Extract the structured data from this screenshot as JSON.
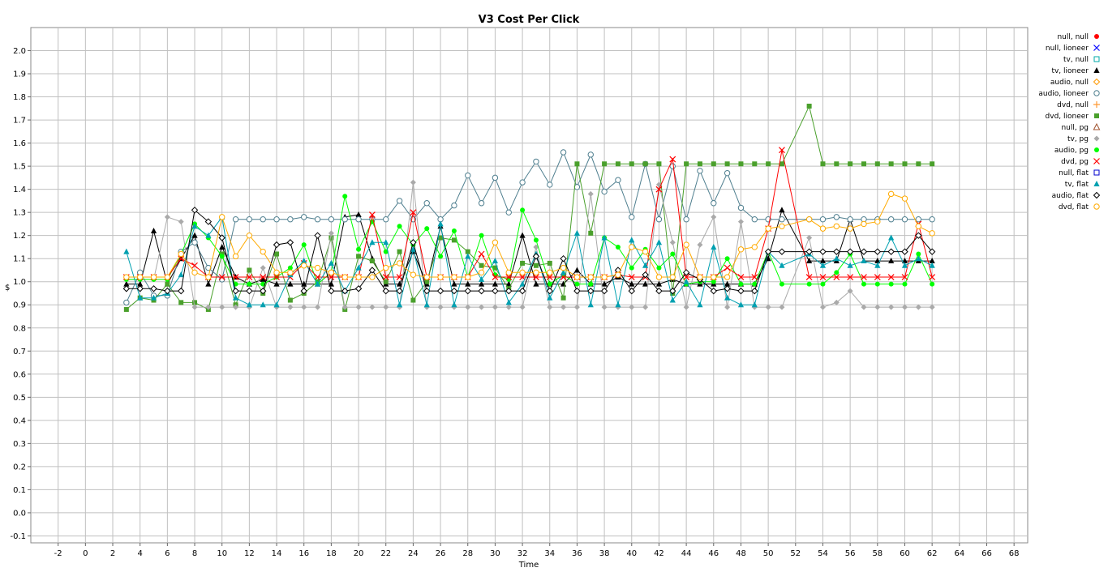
{
  "chart_data": {
    "type": "line",
    "title": "V3 Cost Per Click",
    "xlabel": "Time",
    "ylabel": "$",
    "xlim": [
      -4,
      69
    ],
    "ylim": [
      -0.13,
      2.1
    ],
    "xticks": [
      -2,
      0,
      2,
      4,
      6,
      8,
      10,
      12,
      14,
      16,
      18,
      20,
      22,
      24,
      26,
      28,
      30,
      32,
      34,
      36,
      38,
      40,
      42,
      44,
      46,
      48,
      50,
      52,
      54,
      56,
      58,
      60,
      62,
      64,
      66,
      68
    ],
    "yticks": [
      -0.1,
      0.0,
      0.1,
      0.2,
      0.3,
      0.4,
      0.5,
      0.6,
      0.7,
      0.8,
      0.9,
      1.0,
      1.1,
      1.2,
      1.3,
      1.4,
      1.5,
      1.6,
      1.7,
      1.8,
      1.9,
      2.0
    ],
    "ytick_labels": [
      "-0.1",
      "0.0",
      "0.1",
      "0.2",
      "0.3",
      "0.4",
      "0.5",
      "0.6",
      "0.7",
      "0.8",
      "0.9",
      "1.0",
      "1.1",
      "1.2",
      "1.3",
      "1.4",
      "1.5",
      "1.6",
      "1.7",
      "1.8",
      "1.9",
      "2.0"
    ],
    "grid": true,
    "legend_position": "right",
    "series": [
      {
        "name": "null, null",
        "color": "#ff0000",
        "marker": "circle-filled",
        "x": [],
        "y": []
      },
      {
        "name": "null, lioneer",
        "color": "#0000ff",
        "marker": "x",
        "x": [],
        "y": []
      },
      {
        "name": "tv, null",
        "color": "#00aaaa",
        "marker": "square-open",
        "x": [],
        "y": []
      },
      {
        "name": "tv, lioneer",
        "color": "#000000",
        "marker": "triangle-filled",
        "x": [
          3,
          4,
          5,
          6,
          7,
          8,
          9,
          10,
          11,
          12,
          13,
          14,
          15,
          16,
          17,
          18,
          19,
          20,
          21,
          22,
          23,
          24,
          25,
          26,
          27,
          28,
          29,
          30,
          31,
          32,
          33,
          34,
          35,
          36,
          37,
          38,
          39,
          40,
          41,
          42,
          43,
          44,
          45,
          46,
          47,
          48,
          49,
          50,
          51,
          53,
          54,
          55,
          56,
          57,
          58,
          59,
          60,
          61,
          62
        ],
        "y": [
          0.99,
          0.99,
          1.22,
          0.99,
          1.1,
          1.2,
          0.99,
          1.15,
          1.02,
          0.99,
          1.01,
          0.99,
          0.99,
          0.99,
          0.99,
          0.99,
          1.28,
          1.29,
          1.1,
          0.99,
          0.99,
          1.13,
          0.99,
          1.24,
          0.99,
          0.99,
          0.99,
          0.99,
          0.99,
          1.2,
          0.99,
          0.99,
          0.99,
          1.05,
          0.99,
          0.99,
          1.02,
          0.99,
          0.99,
          0.99,
          1.01,
          0.99,
          0.99,
          0.99,
          0.99,
          0.99,
          0.99,
          1.1,
          1.31,
          1.09,
          1.09,
          1.09,
          1.27,
          1.09,
          1.09,
          1.09,
          1.09,
          1.09,
          1.09
        ]
      },
      {
        "name": "audio, null",
        "color": "#ff9900",
        "marker": "diamond-open",
        "x": [],
        "y": []
      },
      {
        "name": "audio, lioneer",
        "color": "#4f7f8f",
        "marker": "circle-open",
        "x": [
          3,
          4,
          5,
          6,
          7,
          8,
          9,
          10,
          11,
          12,
          13,
          14,
          15,
          16,
          17,
          18,
          19,
          20,
          21,
          22,
          23,
          24,
          25,
          26,
          27,
          28,
          29,
          30,
          31,
          32,
          33,
          34,
          35,
          36,
          37,
          38,
          39,
          40,
          41,
          42,
          43,
          44,
          45,
          46,
          47,
          48,
          49,
          50,
          51,
          53,
          54,
          55,
          56,
          57,
          58,
          59,
          60,
          61,
          62
        ],
        "y": [
          0.91,
          1.04,
          0.94,
          0.94,
          1.13,
          1.17,
          1.06,
          1.01,
          1.27,
          1.27,
          1.27,
          1.27,
          1.27,
          1.28,
          1.27,
          1.27,
          1.27,
          1.27,
          1.27,
          1.27,
          1.35,
          1.27,
          1.34,
          1.27,
          1.33,
          1.46,
          1.34,
          1.45,
          1.3,
          1.43,
          1.52,
          1.42,
          1.56,
          1.41,
          1.55,
          1.39,
          1.44,
          1.28,
          1.51,
          1.27,
          1.5,
          1.27,
          1.48,
          1.34,
          1.47,
          1.32,
          1.27,
          1.27,
          1.27,
          1.27,
          1.27,
          1.28,
          1.27,
          1.27,
          1.27,
          1.27,
          1.27,
          1.27,
          1.27
        ]
      },
      {
        "name": "dvd, null",
        "color": "#ff9933",
        "marker": "plus",
        "x": [],
        "y": []
      },
      {
        "name": "dvd, lioneer",
        "color": "#4aa02c",
        "marker": "square-filled",
        "x": [
          3,
          4,
          5,
          6,
          7,
          8,
          9,
          10,
          11,
          12,
          13,
          14,
          15,
          16,
          17,
          18,
          19,
          20,
          21,
          22,
          23,
          24,
          25,
          26,
          27,
          28,
          29,
          30,
          31,
          32,
          33,
          34,
          35,
          36,
          37,
          38,
          39,
          40,
          41,
          42,
          43,
          44,
          45,
          46,
          47,
          48,
          49,
          50,
          51,
          53,
          54,
          55,
          56,
          57,
          58,
          59,
          60,
          61,
          62
        ],
        "y": [
          0.88,
          0.93,
          0.92,
          0.99,
          0.91,
          0.91,
          0.88,
          1.12,
          0.9,
          1.05,
          0.95,
          1.12,
          0.92,
          0.95,
          1.0,
          1.19,
          0.88,
          1.11,
          1.09,
          1.0,
          1.13,
          0.92,
          1.0,
          1.19,
          1.18,
          1.13,
          1.07,
          1.06,
          0.97,
          1.08,
          1.07,
          1.08,
          0.93,
          1.51,
          1.21,
          1.51,
          1.51,
          1.51,
          1.51,
          1.51,
          0.95,
          1.51,
          1.51,
          1.51,
          1.51,
          1.51,
          1.51,
          1.51,
          1.51,
          1.76,
          1.51,
          1.51,
          1.51,
          1.51,
          1.51,
          1.51,
          1.51,
          1.51,
          1.51
        ]
      },
      {
        "name": "null, pg",
        "color": "#a0522d",
        "marker": "triangle-open",
        "x": [],
        "y": []
      },
      {
        "name": "tv, pg",
        "color": "#aaaaaa",
        "marker": "diamond-filled",
        "x": [
          3,
          4,
          5,
          6,
          7,
          8,
          9,
          10,
          11,
          12,
          13,
          14,
          15,
          16,
          17,
          18,
          19,
          20,
          21,
          22,
          23,
          24,
          25,
          26,
          27,
          28,
          29,
          30,
          31,
          32,
          33,
          34,
          35,
          36,
          37,
          38,
          39,
          40,
          41,
          42,
          43,
          44,
          45,
          46,
          47,
          48,
          49,
          50,
          51,
          53,
          54,
          55,
          56,
          57,
          58,
          59,
          60,
          61,
          62
        ],
        "y": [
          1.01,
          1.01,
          1.01,
          1.28,
          1.26,
          0.89,
          0.89,
          0.89,
          0.89,
          0.89,
          1.06,
          0.89,
          0.89,
          0.89,
          0.89,
          1.21,
          0.89,
          0.89,
          0.89,
          0.89,
          0.89,
          1.43,
          0.89,
          0.89,
          0.89,
          0.89,
          0.89,
          0.89,
          0.89,
          0.89,
          1.15,
          0.89,
          0.89,
          0.89,
          1.38,
          0.89,
          0.89,
          0.89,
          0.89,
          1.42,
          1.17,
          0.89,
          1.16,
          1.28,
          0.89,
          1.26,
          0.89,
          0.89,
          0.89,
          1.19,
          0.89,
          0.91,
          0.96,
          0.89,
          0.89,
          0.89,
          0.89,
          0.89,
          0.89
        ]
      },
      {
        "name": "audio, pg",
        "color": "#00ff00",
        "marker": "circle-filled",
        "x": [
          3,
          4,
          5,
          6,
          7,
          8,
          9,
          10,
          11,
          12,
          13,
          14,
          15,
          16,
          17,
          18,
          19,
          20,
          21,
          22,
          23,
          24,
          25,
          26,
          27,
          28,
          29,
          30,
          31,
          32,
          33,
          34,
          35,
          36,
          37,
          38,
          39,
          40,
          41,
          42,
          43,
          44,
          45,
          46,
          47,
          48,
          49,
          50,
          51,
          53,
          54,
          55,
          56,
          57,
          58,
          59,
          60,
          61,
          62
        ],
        "y": [
          1.01,
          1.01,
          1.01,
          1.01,
          1.12,
          1.25,
          1.19,
          1.11,
          0.99,
          0.99,
          0.99,
          1.02,
          1.06,
          1.16,
          0.99,
          1.04,
          1.37,
          1.14,
          1.26,
          1.13,
          1.24,
          1.16,
          1.23,
          1.11,
          1.22,
          1.02,
          1.2,
          1.03,
          1.01,
          1.31,
          1.18,
          0.99,
          1.03,
          0.99,
          0.99,
          1.19,
          1.15,
          1.06,
          1.14,
          1.06,
          1.12,
          0.99,
          1.0,
          1.0,
          1.1,
          0.99,
          0.99,
          1.13,
          0.99,
          0.99,
          0.99,
          1.04,
          1.12,
          0.99,
          0.99,
          0.99,
          0.99,
          1.12,
          0.99
        ]
      },
      {
        "name": "dvd, pg",
        "color": "#ff0000",
        "marker": "x",
        "x": [
          3,
          4,
          5,
          6,
          7,
          8,
          9,
          10,
          11,
          12,
          13,
          14,
          15,
          16,
          17,
          18,
          19,
          20,
          21,
          22,
          23,
          24,
          25,
          26,
          27,
          28,
          29,
          30,
          31,
          32,
          33,
          34,
          35,
          36,
          37,
          38,
          39,
          40,
          41,
          42,
          43,
          44,
          45,
          46,
          47,
          48,
          49,
          50,
          51,
          53,
          54,
          55,
          56,
          57,
          58,
          59,
          60,
          61,
          62
        ],
        "y": [
          1.02,
          1.02,
          1.02,
          1.02,
          1.1,
          1.07,
          1.02,
          1.02,
          1.02,
          1.02,
          1.02,
          1.02,
          1.02,
          1.08,
          1.02,
          1.02,
          1.02,
          1.02,
          1.29,
          1.02,
          1.02,
          1.3,
          1.02,
          1.02,
          1.02,
          1.02,
          1.12,
          1.02,
          1.02,
          1.02,
          1.02,
          1.02,
          1.02,
          1.02,
          1.02,
          1.02,
          1.03,
          1.02,
          1.02,
          1.4,
          1.53,
          1.02,
          1.02,
          1.02,
          1.06,
          1.02,
          1.02,
          1.23,
          1.57,
          1.02,
          1.02,
          1.02,
          1.02,
          1.02,
          1.02,
          1.02,
          1.02,
          1.25,
          1.02
        ]
      },
      {
        "name": "null, flat",
        "color": "#0000cc",
        "marker": "square-open",
        "x": [],
        "y": []
      },
      {
        "name": "tv, flat",
        "color": "#00a0b0",
        "marker": "triangle-filled",
        "x": [
          3,
          4,
          5,
          6,
          7,
          8,
          9,
          10,
          11,
          12,
          13,
          14,
          15,
          16,
          17,
          18,
          19,
          20,
          21,
          22,
          23,
          24,
          25,
          26,
          27,
          28,
          29,
          30,
          31,
          32,
          33,
          34,
          35,
          36,
          37,
          38,
          39,
          40,
          41,
          42,
          43,
          44,
          45,
          46,
          47,
          48,
          49,
          50,
          51,
          53,
          54,
          55,
          56,
          57,
          58,
          59,
          60,
          61,
          62
        ],
        "y": [
          1.13,
          0.93,
          0.93,
          0.95,
          1.03,
          1.24,
          1.2,
          1.28,
          0.93,
          0.9,
          0.9,
          0.9,
          1.03,
          1.09,
          0.99,
          1.08,
          0.96,
          1.06,
          1.17,
          1.17,
          0.9,
          1.14,
          0.9,
          1.25,
          0.9,
          1.11,
          1.01,
          1.09,
          0.91,
          0.99,
          1.12,
          0.93,
          1.04,
          1.21,
          0.9,
          1.19,
          0.9,
          1.18,
          1.07,
          1.17,
          0.92,
          1.0,
          0.9,
          1.15,
          0.93,
          0.9,
          0.9,
          1.13,
          1.07,
          1.12,
          1.07,
          1.1,
          1.07,
          1.09,
          1.07,
          1.19,
          1.07,
          1.1,
          1.07
        ]
      },
      {
        "name": "audio, flat",
        "color": "#000000",
        "marker": "diamond-open",
        "x": [
          3,
          4,
          5,
          6,
          7,
          8,
          9,
          10,
          11,
          12,
          13,
          14,
          15,
          16,
          17,
          18,
          19,
          20,
          21,
          22,
          23,
          24,
          25,
          26,
          27,
          28,
          29,
          30,
          31,
          32,
          33,
          34,
          35,
          36,
          37,
          38,
          39,
          40,
          41,
          42,
          43,
          44,
          45,
          46,
          47,
          48,
          49,
          50,
          51,
          53,
          54,
          55,
          56,
          57,
          58,
          59,
          60,
          61,
          62
        ],
        "y": [
          0.97,
          0.97,
          0.97,
          0.96,
          0.96,
          1.31,
          1.26,
          1.19,
          0.96,
          0.96,
          0.96,
          1.16,
          1.17,
          0.96,
          1.2,
          0.96,
          0.96,
          0.97,
          1.05,
          0.96,
          0.96,
          1.17,
          0.96,
          0.96,
          0.96,
          0.96,
          0.96,
          0.96,
          0.96,
          0.96,
          1.11,
          0.96,
          1.1,
          0.96,
          0.96,
          0.96,
          1.05,
          0.96,
          1.03,
          0.96,
          0.96,
          1.04,
          1.01,
          0.96,
          0.97,
          0.96,
          0.96,
          1.13,
          1.13,
          1.13,
          1.13,
          1.13,
          1.13,
          1.13,
          1.13,
          1.13,
          1.13,
          1.2,
          1.13
        ]
      },
      {
        "name": "dvd, flat",
        "color": "#ffaa00",
        "marker": "circle-open",
        "x": [
          3,
          4,
          5,
          6,
          7,
          8,
          9,
          10,
          11,
          12,
          13,
          14,
          15,
          16,
          17,
          18,
          19,
          20,
          21,
          22,
          23,
          24,
          25,
          26,
          27,
          28,
          29,
          30,
          31,
          32,
          33,
          34,
          35,
          36,
          37,
          38,
          39,
          40,
          41,
          42,
          43,
          44,
          45,
          46,
          47,
          48,
          49,
          50,
          51,
          53,
          54,
          55,
          56,
          57,
          58,
          59,
          60,
          61,
          62
        ],
        "y": [
          1.02,
          1.02,
          1.02,
          1.02,
          1.12,
          1.04,
          1.02,
          1.28,
          1.11,
          1.2,
          1.13,
          1.04,
          1.04,
          1.07,
          1.06,
          1.04,
          1.02,
          1.02,
          1.02,
          1.06,
          1.08,
          1.03,
          1.02,
          1.02,
          1.02,
          1.02,
          1.04,
          1.17,
          1.04,
          1.04,
          1.04,
          1.04,
          1.06,
          1.02,
          1.02,
          1.02,
          1.03,
          1.15,
          1.13,
          1.02,
          1.02,
          1.16,
          1.02,
          1.02,
          1.02,
          1.14,
          1.15,
          1.23,
          1.24,
          1.27,
          1.23,
          1.24,
          1.23,
          1.25,
          1.26,
          1.38,
          1.36,
          1.24,
          1.21
        ]
      }
    ]
  }
}
